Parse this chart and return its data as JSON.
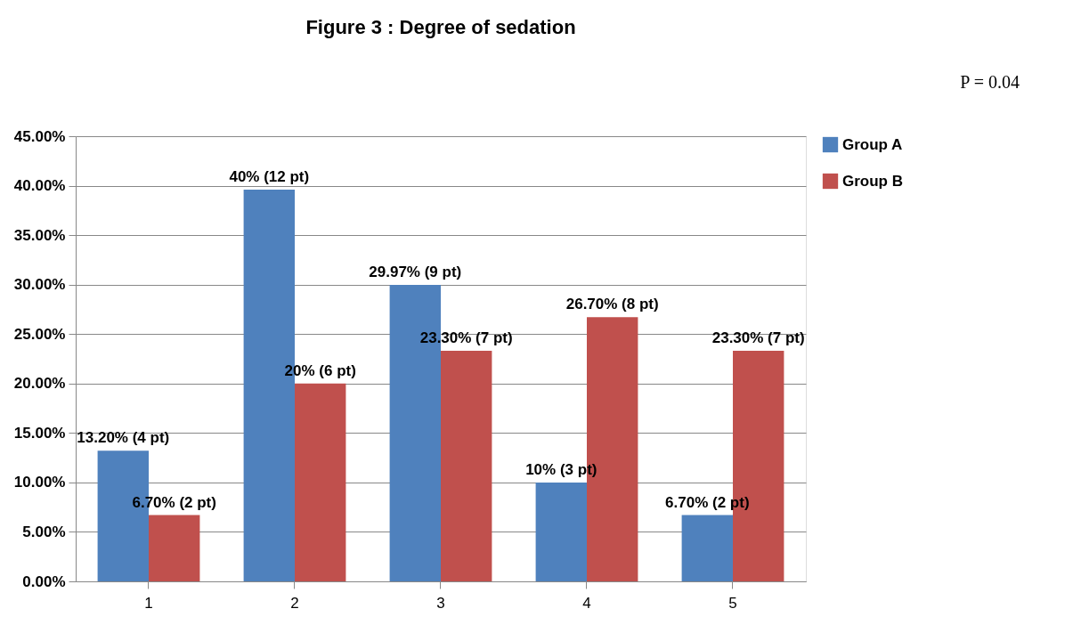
{
  "chart_data": {
    "type": "bar",
    "title": "Figure 3 : Degree of sedation",
    "categories": [
      "1",
      "2",
      "3",
      "4",
      "5"
    ],
    "series": [
      {
        "name": "Group A",
        "color": "#4f81bd",
        "values": [
          13.2,
          39.6,
          29.97,
          10,
          6.7
        ],
        "value_labels": [
          "13.20% (4 pt)",
          "40% (12 pt)",
          "29.97% (9 pt)",
          "10% (3 pt)",
          "6.70% (2 pt)"
        ]
      },
      {
        "name": "Group B",
        "color": "#c0504d",
        "values": [
          6.7,
          20,
          23.3,
          26.7,
          23.3
        ],
        "value_labels": [
          "6.70%  (2 pt)",
          "20% (6 pt)",
          "23.30% (7 pt)",
          "26.70% (8 pt)",
          "23.30% (7 pt)"
        ]
      }
    ],
    "ylim": [
      0,
      45
    ],
    "yticks": [
      {
        "value": 0,
        "label": "0.00%"
      },
      {
        "value": 5,
        "label": "5.00%"
      },
      {
        "value": 10,
        "label": "10.00%"
      },
      {
        "value": 15,
        "label": "15.00%"
      },
      {
        "value": 20,
        "label": "20.00%"
      },
      {
        "value": 25,
        "label": "25.00%"
      },
      {
        "value": 30,
        "label": "30.00%"
      },
      {
        "value": 35,
        "label": "35.00%"
      },
      {
        "value": 40,
        "label": "40.00%"
      },
      {
        "value": 45,
        "label": "45.00%"
      }
    ],
    "grid": "y",
    "legend": "right",
    "annotations": [
      "P = 0.04"
    ]
  }
}
